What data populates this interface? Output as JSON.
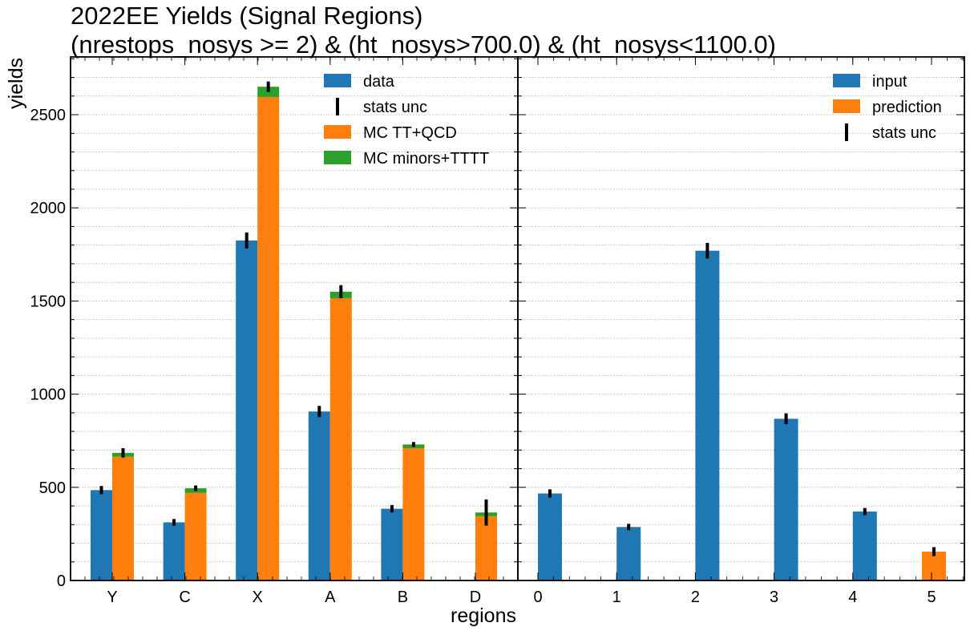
{
  "title": {
    "line1": "2022EE Yields (Signal Regions)",
    "line2": "(nrestops_nosys >= 2) & (ht_nosys>700.0) & (ht_nosys<1100.0)"
  },
  "ylabel": "yields",
  "xlabel": "regions",
  "colors": {
    "data": "#1f77b4",
    "input": "#1f77b4",
    "mc_main": "#ff7f0e",
    "prediction": "#ff7f0e",
    "mc_minor": "#2ca02c",
    "errorbar": "#000000"
  },
  "chart_data": [
    {
      "type": "bar",
      "panel": "left",
      "categories": [
        "Y",
        "C",
        "X",
        "A",
        "B",
        "D"
      ],
      "ylim": [
        0,
        2810
      ],
      "yticks": [
        0,
        500,
        1000,
        1500,
        2000,
        2500
      ],
      "grid": true,
      "legend_placement": "top-right",
      "legend": [
        "data",
        "stats unc",
        "MC TT+QCD",
        "MC minors+TTTT"
      ],
      "series": [
        {
          "name": "data",
          "values": [
            485,
            312,
            1825,
            907,
            385,
            0
          ],
          "stats_unc": [
            22,
            18,
            43,
            30,
            20,
            0
          ]
        },
        {
          "name": "MC TT+QCD",
          "values": [
            665,
            470,
            2595,
            1515,
            710,
            345
          ],
          "stats_unc": null
        },
        {
          "name": "MC minors+TTTT",
          "values": [
            20,
            25,
            55,
            35,
            20,
            20
          ],
          "stats_unc": null
        }
      ],
      "mc_total_stats_unc": [
        25,
        15,
        28,
        35,
        13,
        70
      ]
    },
    {
      "type": "bar",
      "panel": "right",
      "categories": [
        "0",
        "1",
        "2",
        "3",
        "4",
        "5"
      ],
      "ylim": [
        0,
        2810
      ],
      "grid": true,
      "legend_placement": "top-right",
      "legend": [
        "input",
        "prediction",
        "stats unc"
      ],
      "series": [
        {
          "name": "input",
          "values": [
            467,
            287,
            1770,
            868,
            370,
            0
          ],
          "stats_unc": [
            22,
            17,
            42,
            29,
            19,
            0
          ]
        },
        {
          "name": "prediction",
          "values": [
            0,
            0,
            0,
            0,
            0,
            155
          ],
          "stats_unc": [
            0,
            0,
            0,
            0,
            0,
            24
          ]
        }
      ]
    }
  ]
}
